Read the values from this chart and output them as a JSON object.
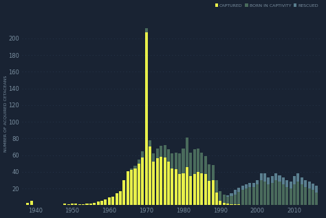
{
  "background_color": "#192333",
  "grid_color": "#243347",
  "text_color": "#7a8fa0",
  "legend_labels": [
    "CAPTURED",
    "BORN IN CAPTIVITY",
    "RESCUED"
  ],
  "legend_colors": [
    "#e8f04a",
    "#4a6b5c",
    "#5a7f8f"
  ],
  "ylabel": "NUMBER OF ACQUIRED CETACEANS",
  "ylim": [
    0,
    220
  ],
  "yticks": [
    20,
    40,
    60,
    80,
    100,
    120,
    140,
    160,
    180,
    200
  ],
  "xlim": [
    1936.5,
    2017.5
  ],
  "years": [
    1938,
    1939,
    1940,
    1941,
    1942,
    1943,
    1944,
    1945,
    1946,
    1947,
    1948,
    1949,
    1950,
    1951,
    1952,
    1953,
    1954,
    1955,
    1956,
    1957,
    1958,
    1959,
    1960,
    1961,
    1962,
    1963,
    1964,
    1965,
    1966,
    1967,
    1968,
    1969,
    1970,
    1971,
    1972,
    1973,
    1974,
    1975,
    1976,
    1977,
    1978,
    1979,
    1980,
    1981,
    1982,
    1983,
    1984,
    1985,
    1986,
    1987,
    1988,
    1989,
    1990,
    1991,
    1992,
    1993,
    1994,
    1995,
    1996,
    1997,
    1998,
    1999,
    2000,
    2001,
    2002,
    2003,
    2004,
    2005,
    2006,
    2007,
    2008,
    2009,
    2010,
    2011,
    2012,
    2013,
    2014,
    2015,
    2016
  ],
  "captured": [
    3,
    5,
    0,
    0,
    0,
    0,
    0,
    0,
    0,
    0,
    2,
    1,
    2,
    2,
    1,
    1,
    2,
    2,
    3,
    4,
    5,
    7,
    9,
    10,
    14,
    17,
    30,
    41,
    42,
    44,
    50,
    57,
    207,
    70,
    52,
    56,
    58,
    57,
    52,
    44,
    43,
    37,
    38,
    46,
    35,
    37,
    40,
    38,
    37,
    29,
    30,
    15,
    5,
    3,
    2,
    1,
    1,
    1,
    0,
    0,
    0,
    0,
    0,
    0,
    0,
    0,
    0,
    0,
    0,
    0,
    0,
    0,
    0,
    0,
    0,
    0,
    0,
    0,
    0
  ],
  "born_in_captivity": [
    0,
    0,
    0,
    0,
    0,
    0,
    0,
    0,
    0,
    0,
    0,
    0,
    0,
    0,
    0,
    0,
    0,
    0,
    0,
    0,
    0,
    0,
    0,
    0,
    0,
    0,
    0,
    0,
    2,
    3,
    5,
    8,
    5,
    8,
    10,
    12,
    13,
    15,
    15,
    18,
    20,
    25,
    30,
    35,
    28,
    30,
    28,
    25,
    22,
    20,
    18,
    15,
    12,
    10,
    8,
    10,
    12,
    15,
    18,
    20,
    22,
    22,
    25,
    30,
    28,
    25,
    27,
    30,
    28,
    25,
    22,
    20,
    25,
    28,
    25,
    22,
    20,
    18,
    15
  ],
  "rescued": [
    0,
    0,
    0,
    0,
    0,
    0,
    0,
    0,
    0,
    0,
    0,
    0,
    0,
    0,
    0,
    0,
    0,
    0,
    0,
    0,
    0,
    0,
    0,
    0,
    0,
    0,
    0,
    0,
    0,
    0,
    0,
    0,
    0,
    0,
    0,
    0,
    0,
    0,
    0,
    0,
    0,
    0,
    0,
    0,
    0,
    0,
    0,
    0,
    0,
    0,
    0,
    0,
    0,
    0,
    2,
    3,
    5,
    5,
    5,
    5,
    5,
    5,
    5,
    8,
    10,
    8,
    8,
    8,
    8,
    8,
    8,
    8,
    10,
    10,
    8,
    8,
    8,
    8,
    8
  ],
  "xticks": [
    1940,
    1950,
    1960,
    1970,
    1980,
    1990,
    2000,
    2010
  ]
}
